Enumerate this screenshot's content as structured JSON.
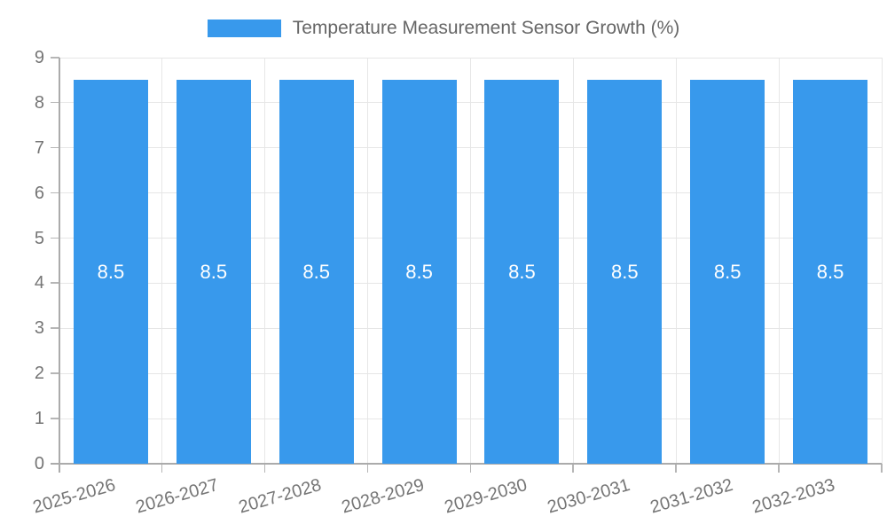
{
  "chart_data": {
    "type": "bar",
    "title": "Temperature Measurement Sensor Growth (%)",
    "categories": [
      "2025-2026",
      "2026-2027",
      "2027-2028",
      "2028-2029",
      "2029-2030",
      "2030-2031",
      "2031-2032",
      "2032-2033"
    ],
    "series": [
      {
        "name": "Temperature Measurement Sensor Growth (%)",
        "values": [
          8.5,
          8.5,
          8.5,
          8.5,
          8.5,
          8.5,
          8.5,
          8.5
        ]
      }
    ],
    "bar_value_labels": [
      "8.5",
      "8.5",
      "8.5",
      "8.5",
      "8.5",
      "8.5",
      "8.5",
      "8.5"
    ],
    "xlabel": "",
    "ylabel": "",
    "ylim": [
      0,
      9
    ],
    "yticks": [
      0,
      1,
      2,
      3,
      4,
      5,
      6,
      7,
      8,
      9
    ],
    "grid": "on",
    "legend_position": "top-center",
    "x_tick_label_rotation_deg": -16,
    "colors": {
      "bar": "#3899EC",
      "grid": "#E6E6E6",
      "axis_line": "#ABABAB",
      "tick_mark": "#B6B6B6",
      "tick_label_text": "#757575",
      "legend_text": "#666666",
      "bar_label_text": "#FFFFFF",
      "background": "#FFFFFF"
    }
  }
}
